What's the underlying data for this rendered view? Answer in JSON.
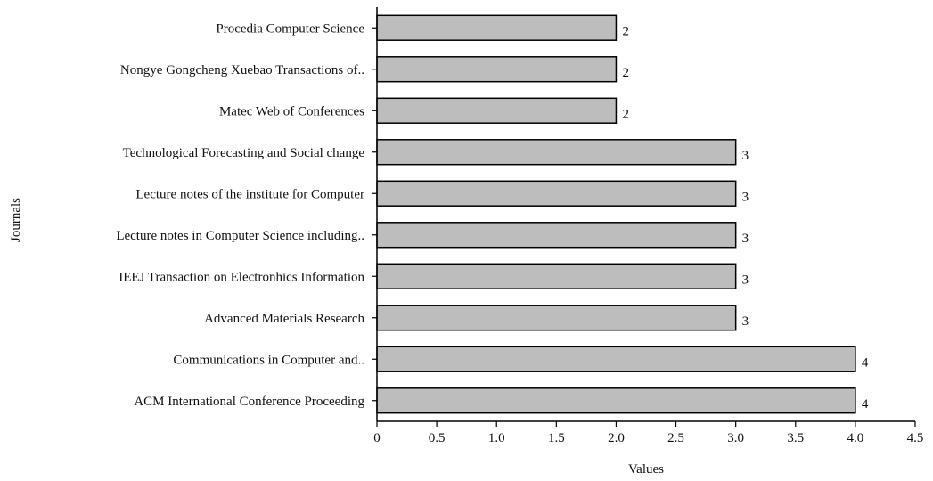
{
  "chart_data": {
    "type": "bar",
    "orientation": "horizontal",
    "title": "",
    "xlabel": "Values",
    "ylabel": "Journals",
    "xlim": [
      0,
      4.5
    ],
    "x_ticks": [
      "0",
      "0.5",
      "1.0",
      "1.5",
      "2.0",
      "2.5",
      "3.0",
      "3.5",
      "4.0",
      "4.5"
    ],
    "grid": false,
    "bar_color": "#bdbdbd",
    "bar_stroke": "#000000",
    "categories": [
      "Procedia Computer Science",
      "Nongye Gongcheng Xuebao Transactions of..",
      "Matec Web of Conferences",
      "Technological Forecasting and Social change",
      "Lecture notes of the institute for Computer",
      "Lecture notes in Computer  Science including..",
      "IEEJ Transaction on Electronhics Information",
      "Advanced Materials Research",
      "Communications in Computer and..",
      "ACM International Conference Proceeding"
    ],
    "values": [
      2,
      2,
      2,
      3,
      3,
      3,
      3,
      3,
      4,
      4
    ],
    "data_labels": [
      "2",
      "2",
      "2",
      "3",
      "3",
      "3",
      "3",
      "3",
      "4",
      "4"
    ]
  }
}
